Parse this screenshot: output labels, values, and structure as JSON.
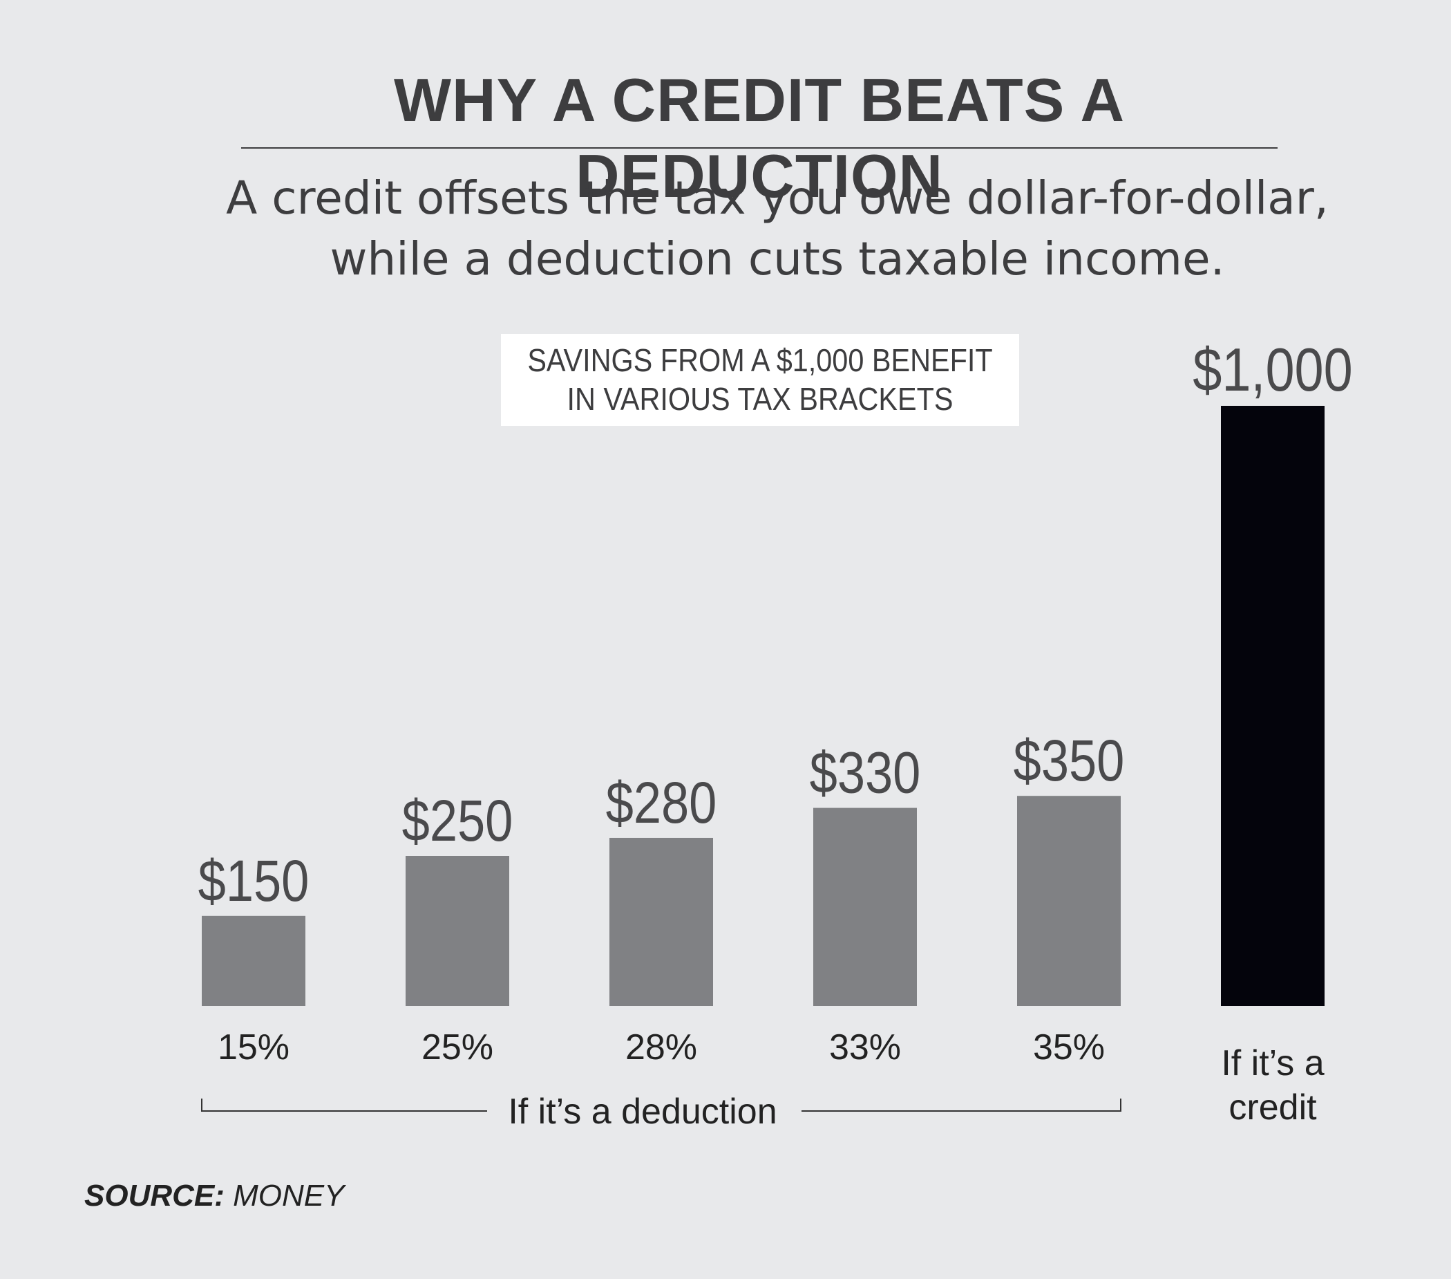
{
  "header": {
    "title": "WHY A CREDIT BEATS A DEDUCTION",
    "subtitle_line1": "A credit offsets the tax you owe dollar-for-dollar,",
    "subtitle_line2": "while a deduction cuts taxable income."
  },
  "chart_label": {
    "line1": "SAVINGS FROM A $1,000 BENEFIT",
    "line2": "IN VARIOUS TAX BRACKETS"
  },
  "chart_data": {
    "type": "bar",
    "categories": [
      "15%",
      "25%",
      "28%",
      "33%",
      "35%",
      "If it’s a credit"
    ],
    "category_lines": [
      [
        "15%"
      ],
      [
        "25%"
      ],
      [
        "28%"
      ],
      [
        "33%"
      ],
      [
        "35%"
      ],
      [
        "If it’s a",
        "credit"
      ]
    ],
    "values": [
      150,
      250,
      280,
      330,
      350,
      1000
    ],
    "value_labels": [
      "$150",
      "$250",
      "$280",
      "$330",
      "$350",
      "$1,000"
    ],
    "bar_colors": [
      "#808184",
      "#808184",
      "#808184",
      "#808184",
      "#808184",
      "#04040c"
    ],
    "ylim": [
      0,
      1000
    ],
    "group_label": "If it’s a deduction",
    "title": "SAVINGS FROM A $1,000 BENEFIT IN VARIOUS TAX BRACKETS",
    "xlabel": "",
    "ylabel": "",
    "grid": false
  },
  "footer": {
    "source_label": "SOURCE:",
    "source_value": "MONEY"
  },
  "colors": {
    "background": "#e8e9eb",
    "text": "#3d3d3f",
    "deduction_bar": "#808184",
    "credit_bar": "#04040c"
  }
}
